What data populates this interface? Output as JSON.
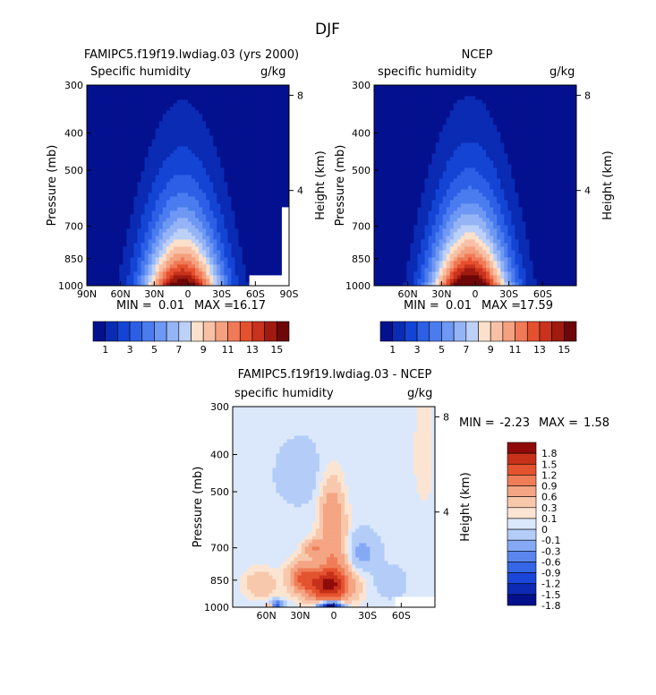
{
  "page": {
    "title": "DJF"
  },
  "colors": {
    "abs_palette": [
      "#04118f",
      "#0a2bb3",
      "#1444d4",
      "#2c5fe6",
      "#4a7cef",
      "#6e98f3",
      "#95b4f6",
      "#bcd0f8",
      "#fbe0cb",
      "#f8c1a6",
      "#f5a07e",
      "#f07a57",
      "#e5502f",
      "#c9321c",
      "#a01a10",
      "#6e0707"
    ],
    "diff_palette": [
      "#05108c",
      "#0c2ab3",
      "#1a46d9",
      "#3566e6",
      "#5a86ee",
      "#85a9f4",
      "#b3cdf8",
      "#dbe8fb",
      "#fbe5d2",
      "#f8c8ac",
      "#f4a583",
      "#ef7d58",
      "#e4532f",
      "#c73119",
      "#8f0b0b"
    ]
  },
  "chart_data": [
    {
      "type": "heatmap",
      "title": "FAMIPC5.f19f19.lwdiag.03 (yrs 2000)",
      "subtitle": "Specific humidity",
      "units": "g/kg",
      "ylabel": "Pressure (mb)",
      "y2label": "Height (km)",
      "x_ticks": [
        "90N",
        "60N",
        "30N",
        "0",
        "30S",
        "60S",
        "90S"
      ],
      "x_values": [
        90,
        60,
        30,
        0,
        -30,
        -60,
        -90
      ],
      "y_ticks": [
        "300",
        "400",
        "500",
        "700",
        "850",
        "1000"
      ],
      "y_values": [
        300,
        400,
        500,
        700,
        850,
        1000
      ],
      "y2_ticks": [
        "8",
        "4"
      ],
      "y2_values": [
        8,
        4
      ],
      "min_label": "MIN =",
      "min_value": "0.01",
      "max_label": "MAX =",
      "max_value": "16.17",
      "field": {
        "peak": 16.17,
        "center_lat": 5,
        "width_lat": 34,
        "scale_height": 180,
        "missing": [
          [
            -56,
            -90,
            930,
            1000
          ],
          [
            -84,
            -90,
            620,
            1000
          ]
        ]
      },
      "colorbar": {
        "labels": [
          "1",
          "3",
          "5",
          "7",
          "9",
          "11",
          "13",
          "15"
        ],
        "levels": [
          0,
          1,
          2,
          3,
          4,
          5,
          6,
          7,
          8,
          9,
          10,
          11,
          12,
          13,
          14,
          15,
          16
        ]
      }
    },
    {
      "type": "heatmap",
      "title": "NCEP",
      "subtitle": "specific humidity",
      "units": "g/kg",
      "ylabel": "Pressure (mb)",
      "y2label": "Height (km)",
      "x_ticks": [
        "60N",
        "30N",
        "0",
        "30S",
        "60S"
      ],
      "x_values": [
        60,
        30,
        0,
        -30,
        -60
      ],
      "y_ticks": [
        "300",
        "400",
        "500",
        "700",
        "850",
        "1000"
      ],
      "y_values": [
        300,
        400,
        500,
        700,
        850,
        1000
      ],
      "y2_ticks": [
        "8",
        "4"
      ],
      "y2_values": [
        8,
        4
      ],
      "min_label": "MIN =",
      "min_value": "0.01",
      "max_label": "MAX =",
      "max_value": "17.59",
      "field": {
        "peak": 17.59,
        "center_lat": 5,
        "width_lat": 34,
        "scale_height": 180,
        "missing": []
      },
      "colorbar": {
        "labels": [
          "1",
          "3",
          "5",
          "7",
          "9",
          "11",
          "13",
          "15"
        ],
        "levels": [
          0,
          1,
          2,
          3,
          4,
          5,
          6,
          7,
          8,
          9,
          10,
          11,
          12,
          13,
          14,
          15,
          16
        ]
      }
    },
    {
      "type": "heatmap",
      "title": "FAMIPC5.f19f19.lwdiag.03 - NCEP",
      "subtitle": "specific humidity",
      "units": "g/kg",
      "ylabel": "Pressure (mb)",
      "y2label": "Height (km)",
      "x_ticks": [
        "60N",
        "30N",
        "0",
        "30S",
        "60S"
      ],
      "x_values": [
        60,
        30,
        0,
        -30,
        -60
      ],
      "y_ticks": [
        "300",
        "400",
        "500",
        "700",
        "850",
        "1000"
      ],
      "y_values": [
        300,
        400,
        500,
        700,
        850,
        1000
      ],
      "y2_ticks": [
        "8",
        "4"
      ],
      "y2_values": [
        8,
        4
      ],
      "min_label": "MIN =",
      "min_value": "-2.23",
      "max_label": "MAX =",
      "max_value": "1.58",
      "field": {
        "features": [
          {
            "lat": 5,
            "p": 880,
            "dlat": 20,
            "dp": 90,
            "amp": 1.5
          },
          {
            "lat": 0,
            "p": 730,
            "dlat": 12,
            "dp": 150,
            "amp": 0.55
          },
          {
            "lat": 2,
            "p": 560,
            "dlat": 10,
            "dp": 110,
            "amp": 0.45
          },
          {
            "lat": 28,
            "p": 830,
            "dlat": 12,
            "dp": 70,
            "amp": 0.8
          },
          {
            "lat": 18,
            "p": 700,
            "dlat": 8,
            "dp": 35,
            "amp": 0.6
          },
          {
            "lat": 3,
            "p": 990,
            "dlat": 10,
            "dp": 25,
            "amp": -2.2
          },
          {
            "lat": 52,
            "p": 985,
            "dlat": 7,
            "dp": 25,
            "amp": -1.0
          },
          {
            "lat": 57,
            "p": 985,
            "dlat": 3,
            "dp": 15,
            "amp": 1.1
          },
          {
            "lat": 65,
            "p": 870,
            "dlat": 14,
            "dp": 70,
            "amp": 0.35
          },
          {
            "lat": -25,
            "p": 720,
            "dlat": 14,
            "dp": 80,
            "amp": -0.35
          },
          {
            "lat": -50,
            "p": 860,
            "dlat": 12,
            "dp": 70,
            "amp": -0.25
          },
          {
            "lat": -80,
            "p": 400,
            "dlat": 8,
            "dp": 120,
            "amp": 0.15
          },
          {
            "lat": 30,
            "p": 450,
            "dlat": 25,
            "dp": 100,
            "amp": -0.12
          }
        ],
        "background": -0.05,
        "missing": [
          [
            -56,
            -90,
            940,
            1000
          ]
        ]
      },
      "colorbar": {
        "labels": [
          "1.8",
          "1.5",
          "1.2",
          "0.9",
          "0.6",
          "0.3",
          "0.1",
          "0",
          "-0.1",
          "-0.3",
          "-0.6",
          "-0.9",
          "-1.2",
          "-1.5",
          "-1.8"
        ],
        "levels": [
          -1.8,
          -1.5,
          -1.2,
          -0.9,
          -0.6,
          -0.3,
          -0.1,
          0,
          0.1,
          0.3,
          0.6,
          0.9,
          1.2,
          1.5,
          1.8
        ]
      }
    }
  ]
}
